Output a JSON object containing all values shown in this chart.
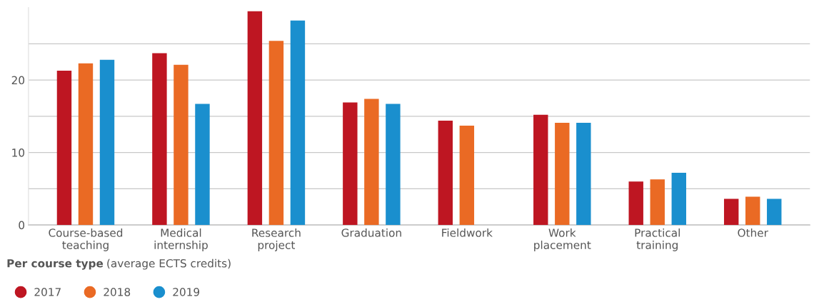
{
  "chart_data": {
    "type": "bar",
    "title": "Per course type",
    "subtitle": "(average ECTS credits)",
    "categories": [
      "Course-based\nteaching",
      "Medical\ninternship",
      "Research\nproject",
      "Graduation",
      "Fieldwork",
      "Work\nplacement",
      "Practical\ntraining",
      "Other"
    ],
    "series": [
      {
        "name": "2017",
        "color": "#be1622",
        "values": [
          21.3,
          23.7,
          29.5,
          16.9,
          14.4,
          15.2,
          6.0,
          3.6
        ]
      },
      {
        "name": "2018",
        "color": "#ea6a24",
        "values": [
          22.3,
          22.1,
          25.4,
          17.4,
          13.7,
          14.1,
          6.3,
          3.9
        ]
      },
      {
        "name": "2019",
        "color": "#1a8fce",
        "values": [
          22.8,
          16.7,
          28.2,
          16.7,
          null,
          14.1,
          7.2,
          3.6
        ]
      }
    ],
    "ylim": [
      0,
      30
    ],
    "yticks": [
      0,
      {
        "value": 5,
        "label": null
      },
      10,
      {
        "value": 15,
        "label": null
      },
      20,
      {
        "value": 25,
        "label": null
      }
    ],
    "grid": "y",
    "legend": "bottom left"
  }
}
